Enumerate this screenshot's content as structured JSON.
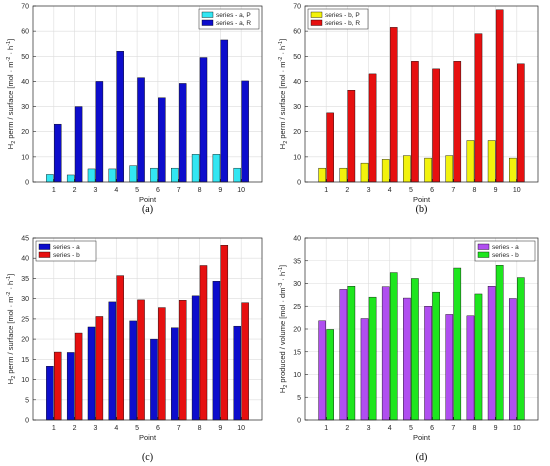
{
  "colors": {
    "background": "#ffffff",
    "axes": "#262626",
    "grid": "#dcdcdc"
  },
  "chart_data": [
    {
      "type": "bar",
      "caption": "(a)",
      "xlabel": "Point",
      "ylabel_main": "H",
      "ylabel_sub": "2",
      "ylabel_rest": " perm / surface [mol · m",
      "ylabel_sup1": "-2",
      "ylabel_mid": " · h",
      "ylabel_sup2": "-1",
      "ylabel_end": "]",
      "categories": [
        "1",
        "2",
        "3",
        "4",
        "5",
        "6",
        "7",
        "8",
        "9",
        "10"
      ],
      "ylim": [
        0,
        70
      ],
      "yticks": [
        0,
        10,
        20,
        30,
        40,
        50,
        60,
        70
      ],
      "grid": true,
      "legend_position": "top-right",
      "series": [
        {
          "name": "series - a, P",
          "color": "#33e6f2",
          "values": [
            3,
            2.8,
            5.2,
            5.2,
            6.5,
            5.5,
            5.5,
            11,
            11,
            5.5
          ]
        },
        {
          "name": "series - a, R",
          "color": "#0d0dcc",
          "values": [
            23,
            30,
            40,
            52,
            41.5,
            33.5,
            39.2,
            49.5,
            56.5,
            40.2
          ]
        }
      ]
    },
    {
      "type": "bar",
      "caption": "(b)",
      "xlabel": "Point",
      "ylabel_main": "H",
      "ylabel_sub": "2",
      "ylabel_rest": " perm / surface [mol · m",
      "ylabel_sup1": "-2",
      "ylabel_mid": " · h",
      "ylabel_sup2": "-1",
      "ylabel_end": "]",
      "categories": [
        "1",
        "2",
        "3",
        "4",
        "5",
        "6",
        "7",
        "8",
        "9",
        "10"
      ],
      "ylim": [
        0,
        70
      ],
      "yticks": [
        0,
        10,
        20,
        30,
        40,
        50,
        60,
        70
      ],
      "grid": true,
      "legend_position": "top-left",
      "series": [
        {
          "name": "series - b, P",
          "color": "#f2f20d",
          "values": [
            5.5,
            5.5,
            7.5,
            9,
            10.5,
            9.5,
            10.5,
            16.5,
            16.5,
            9.5
          ]
        },
        {
          "name": "series - b, R",
          "color": "#e61010",
          "values": [
            27.5,
            36.5,
            43,
            61.5,
            48,
            45,
            48,
            59,
            68.5,
            47
          ]
        }
      ]
    },
    {
      "type": "bar",
      "caption": "(c)",
      "xlabel": "Point",
      "ylabel_main": "H",
      "ylabel_sub": "2",
      "ylabel_rest": " perm / surface [mol · m",
      "ylabel_sup1": "-2",
      "ylabel_mid": " · h",
      "ylabel_sup2": "-1",
      "ylabel_end": "]",
      "categories": [
        "1",
        "2",
        "3",
        "4",
        "5",
        "6",
        "7",
        "8",
        "9",
        "10"
      ],
      "ylim": [
        0,
        45
      ],
      "yticks": [
        0,
        5,
        10,
        15,
        20,
        25,
        30,
        35,
        40,
        45
      ],
      "grid": true,
      "legend_position": "top-left",
      "series": [
        {
          "name": "series - a",
          "color": "#0d0dcc",
          "values": [
            13.3,
            16.7,
            23,
            29.2,
            24.5,
            20,
            22.8,
            30.7,
            34.3,
            23.2
          ]
        },
        {
          "name": "series - b",
          "color": "#e61010",
          "values": [
            16.8,
            21.5,
            25.6,
            35.7,
            29.7,
            27.8,
            29.6,
            38.2,
            43.2,
            29
          ]
        }
      ]
    },
    {
      "type": "bar",
      "caption": "(d)",
      "xlabel": "Point",
      "ylabel_main": "H",
      "ylabel_sub": "2",
      "ylabel_rest": " produced / volume [mol · dm",
      "ylabel_sup1": "-3",
      "ylabel_mid": " · h",
      "ylabel_sup2": "-1",
      "ylabel_end": "]",
      "categories": [
        "1",
        "2",
        "3",
        "4",
        "5",
        "6",
        "7",
        "8",
        "9",
        "10"
      ],
      "ylim": [
        0,
        40
      ],
      "yticks": [
        0,
        5,
        10,
        15,
        20,
        25,
        30,
        35,
        40
      ],
      "grid": true,
      "legend_position": "top-right",
      "series": [
        {
          "name": "series - a",
          "color": "#b04ff0",
          "values": [
            21.8,
            28.7,
            22.3,
            29.3,
            26.8,
            25,
            23.2,
            22.9,
            29.4,
            26.7
          ]
        },
        {
          "name": "series - b",
          "color": "#1ee61e",
          "values": [
            19.9,
            29.4,
            27,
            32.4,
            31.1,
            28.1,
            33.4,
            27.7,
            34,
            31.3
          ]
        }
      ]
    }
  ]
}
